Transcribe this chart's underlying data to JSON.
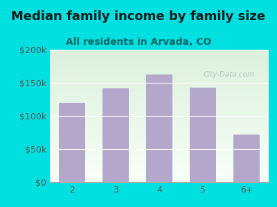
{
  "title": "Median family income by family size",
  "subtitle": "All residents in Arvada, CO",
  "categories": [
    "2",
    "3",
    "4",
    "5",
    "6+"
  ],
  "values": [
    120000,
    142000,
    163000,
    143000,
    72000
  ],
  "bar_color": "#b3a8cc",
  "bg_outer": "#00e0e0",
  "title_color": "#1a1a1a",
  "subtitle_color": "#006666",
  "tick_color": "#555555",
  "ylim": [
    0,
    200000
  ],
  "yticks": [
    0,
    50000,
    100000,
    150000,
    200000
  ],
  "ytick_labels": [
    "$0",
    "$50k",
    "$100k",
    "$150k",
    "$200k"
  ],
  "watermark": "City-Data.com",
  "title_fontsize": 13,
  "subtitle_fontsize": 10,
  "tick_fontsize": 9
}
